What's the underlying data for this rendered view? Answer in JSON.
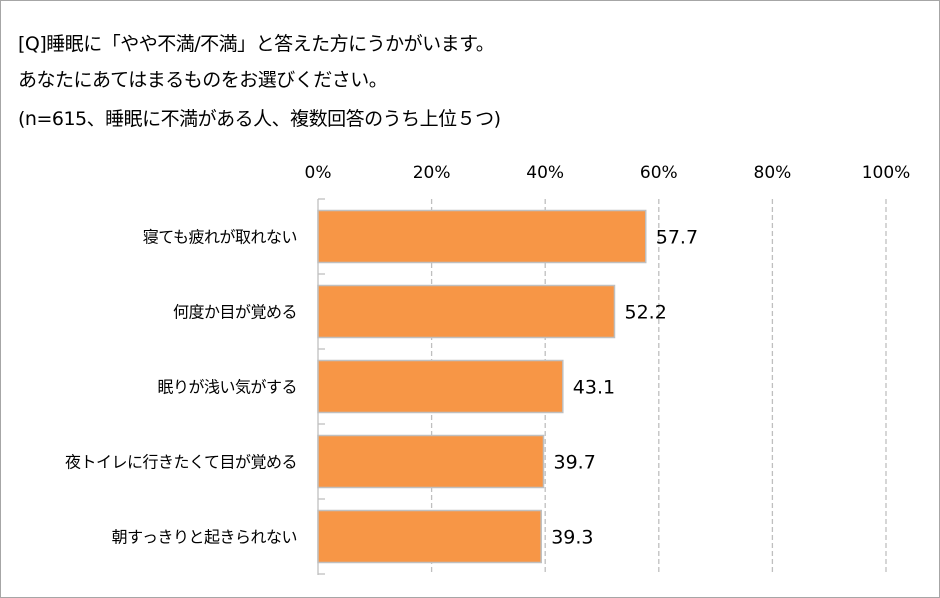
{
  "chart_data": {
    "type": "bar",
    "orientation": "horizontal",
    "title_lines": [
      "[Q]睡眠に「やや不満/不満」と答えた方にうかがいます。",
      "あなたにあてはまるものをお選びください。",
      "(n=615、睡眠に不満がある人、複数回答のうち上位５つ)"
    ],
    "categories": [
      "寝ても疲れが取れない",
      "何度か目が覚める",
      "眠りが浅い気がする",
      "夜トイレに行きたくて目が覚める",
      "朝すっきりと起きられない"
    ],
    "values": [
      57.7,
      52.2,
      43.1,
      39.7,
      39.3
    ],
    "data_labels": [
      "57.7",
      "52.2",
      "43.1",
      "39.7",
      "39.3"
    ],
    "xlim": [
      0,
      100
    ],
    "x_ticks": [
      0,
      20,
      40,
      60,
      80,
      100
    ],
    "x_tick_labels": [
      "0%",
      "20%",
      "40%",
      "60%",
      "80%",
      "100%"
    ],
    "x_axis_position": "top",
    "grid": "vertical dashed",
    "legend": "none",
    "colors": {
      "bar": "#F79646",
      "bar_border": "#BFBFBF",
      "grid": "#BFBFBF"
    }
  }
}
